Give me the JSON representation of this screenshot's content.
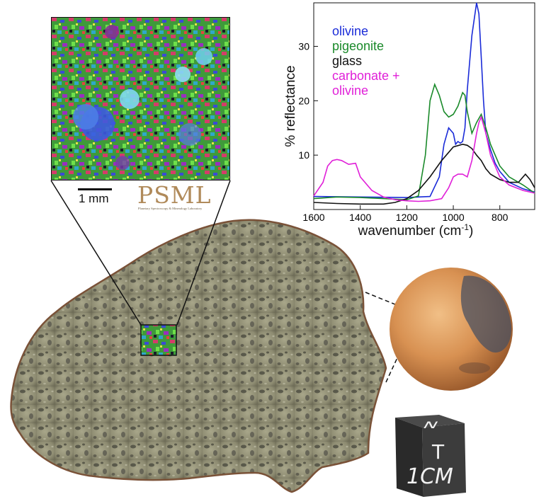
{
  "inset": {
    "scale_bar_label": "1 mm",
    "logo_text": "PSML",
    "logo_subtitle": "Planetary Spectroscopy & Mineralogy Laboratory"
  },
  "cube": {
    "top_letter": "N",
    "side_letter": "T",
    "front_label": "1CM"
  },
  "chart_data": {
    "type": "line",
    "title": "",
    "xlabel": "wavenumber (cm-1)",
    "ylabel": "% reflectance",
    "xlim": [
      1600,
      650
    ],
    "ylim": [
      0,
      38
    ],
    "xticks": [
      1600,
      1400,
      1200,
      1000,
      800
    ],
    "yticks": [
      10,
      20,
      30
    ],
    "grid": false,
    "legend_position": "top-left inside",
    "legend_lines": [
      {
        "text": "olivine",
        "color": "#1a2bd8"
      },
      {
        "text": "pigeonite",
        "color": "#1a8a2a"
      },
      {
        "text": "glass",
        "color": "#111111"
      },
      {
        "text": "carbonate +",
        "color": "#e020d8"
      },
      {
        "text": "olivine",
        "color": "#e020d8"
      }
    ],
    "series": [
      {
        "name": "olivine",
        "color": "#1a2bd8",
        "x": [
          1600,
          1400,
          1200,
          1100,
          1060,
          1040,
          1020,
          1000,
          990,
          980,
          970,
          960,
          950,
          940,
          920,
          900,
          890,
          880,
          870,
          860,
          840,
          820,
          800,
          760,
          700,
          650
        ],
        "y": [
          2.4,
          2.3,
          2.2,
          2.4,
          6,
          12,
          15,
          14,
          12,
          12.5,
          12.2,
          12.5,
          15,
          22,
          32,
          38,
          36,
          28,
          20,
          14,
          11,
          8.5,
          7,
          5,
          3.8,
          3.2
        ]
      },
      {
        "name": "pigeonite",
        "color": "#1a8a2a",
        "x": [
          1600,
          1500,
          1400,
          1300,
          1200,
          1150,
          1120,
          1100,
          1080,
          1060,
          1040,
          1020,
          1000,
          980,
          960,
          950,
          940,
          920,
          900,
          880,
          860,
          840,
          800,
          760,
          700,
          650
        ],
        "y": [
          2.0,
          2.3,
          2.2,
          2.0,
          1.8,
          2.5,
          10,
          20,
          23,
          21,
          18,
          17,
          17.5,
          19,
          21.5,
          21,
          18,
          14,
          16,
          17.5,
          15,
          12,
          8,
          6,
          4.5,
          3
        ]
      },
      {
        "name": "glass",
        "color": "#111111",
        "x": [
          1600,
          1500,
          1400,
          1300,
          1250,
          1200,
          1150,
          1100,
          1050,
          1000,
          960,
          940,
          920,
          900,
          880,
          860,
          840,
          800,
          760,
          720,
          690,
          670,
          650
        ],
        "y": [
          1.3,
          1.1,
          1.0,
          1.0,
          1.3,
          2.0,
          3.5,
          6,
          9,
          11.5,
          12,
          11.8,
          11.2,
          10,
          9,
          7.5,
          6.5,
          5.5,
          5,
          5,
          6.5,
          5.5,
          4
        ]
      },
      {
        "name": "carbonate + olivine",
        "color": "#e020d8",
        "x": [
          1600,
          1560,
          1540,
          1520,
          1500,
          1480,
          1450,
          1420,
          1400,
          1350,
          1300,
          1250,
          1200,
          1150,
          1100,
          1050,
          1020,
          1000,
          980,
          960,
          940,
          920,
          900,
          890,
          880,
          860,
          840,
          800,
          760,
          700,
          650
        ],
        "y": [
          2.5,
          5,
          8,
          9,
          9.2,
          9,
          8.3,
          8.5,
          6,
          3.5,
          2.3,
          1.8,
          1.6,
          1.5,
          1.6,
          2,
          4,
          6,
          6.5,
          6.5,
          6,
          9,
          14,
          16,
          17,
          14,
          10,
          6,
          4.5,
          3.5,
          3
        ]
      }
    ]
  }
}
